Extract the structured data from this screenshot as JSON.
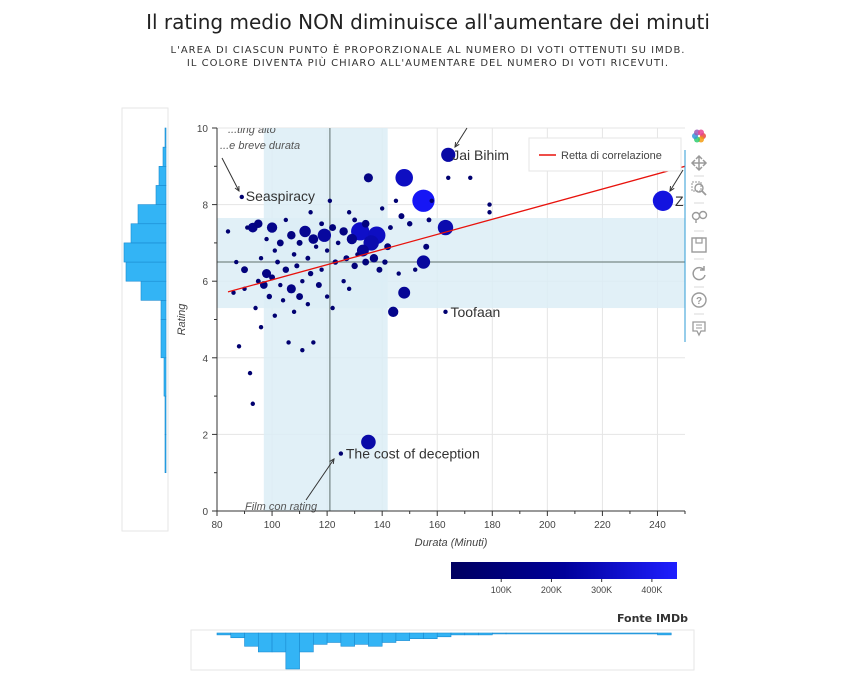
{
  "header": {
    "title": "Il rating medio NON diminuisce all'aumentare dei minuti",
    "subtitle_line1": "L'AREA DI CIASCUN PUNTO È PROPORZIONALE AL NUMERO DI VOTI OTTENUTI SU IMDB.",
    "subtitle_line2": "IL COLORE DIVENTA PIÙ CHIARO ALL'AUMENTARE DEL NUMERO DI VOTI RICEVUTI."
  },
  "source": "Fonte IMDb",
  "toolbar": {
    "icons": [
      "bokeh-logo-icon",
      "pan-icon",
      "box-zoom-icon",
      "wheel-zoom-icon",
      "save-icon",
      "reset-icon",
      "help-icon",
      "hover-icon"
    ]
  },
  "colors": {
    "dark_point": "#000080",
    "light_point": "#1a1aff",
    "band": "#dcedf6",
    "histogram": "#33b4f5",
    "regression": "#e8120c",
    "mean_line": "#8a9a9a"
  },
  "chart_data": {
    "type": "scatter",
    "xlabel": "Durata (Minuti)",
    "ylabel": "Rating",
    "xlim": [
      80,
      250
    ],
    "ylim": [
      0,
      10
    ],
    "xticks": [
      80,
      100,
      120,
      140,
      160,
      180,
      200,
      220,
      240
    ],
    "yticks": [
      0,
      2,
      4,
      6,
      8,
      10
    ],
    "mean_duration": 121,
    "mean_rating": 6.5,
    "duration_band": [
      97,
      142
    ],
    "rating_band": [
      5.3,
      7.65
    ],
    "regression": {
      "name": "Retta di correlazione",
      "x": [
        84,
        250
      ],
      "y": [
        5.72,
        9.0
      ]
    },
    "legend_position": "top-right",
    "colorbar": {
      "ticks": [
        "100K",
        "200K",
        "300K",
        "400K"
      ],
      "range": [
        0,
        450000
      ]
    },
    "annotations": [
      {
        "text": "Seaspiracy",
        "x": 89,
        "y": 8.2
      },
      {
        "text": "Jai Bihim",
        "x": 164,
        "y": 9.3
      },
      {
        "text": "Toofaan",
        "x": 163,
        "y": 5.2
      },
      {
        "text": "The cost of deception",
        "x": 125,
        "y": 1.5
      },
      {
        "text": "Z",
        "x": 242,
        "y": 8.1
      }
    ],
    "annotation_notes": [
      "...ting alto",
      "...e breve durata",
      "Film con rating"
    ],
    "points": [
      {
        "x": 84,
        "y": 7.3,
        "votes": 5000
      },
      {
        "x": 86,
        "y": 5.7,
        "votes": 4000
      },
      {
        "x": 87,
        "y": 6.5,
        "votes": 6000
      },
      {
        "x": 88,
        "y": 4.3,
        "votes": 3000
      },
      {
        "x": 89,
        "y": 8.2,
        "votes": 5000
      },
      {
        "x": 90,
        "y": 6.3,
        "votes": 40000
      },
      {
        "x": 90,
        "y": 5.8,
        "votes": 15000
      },
      {
        "x": 91,
        "y": 7.4,
        "votes": 8000
      },
      {
        "x": 92,
        "y": 3.6,
        "votes": 3000
      },
      {
        "x": 93,
        "y": 7.4,
        "votes": 80000
      },
      {
        "x": 93,
        "y": 2.8,
        "votes": 3000
      },
      {
        "x": 94,
        "y": 5.3,
        "votes": 8000
      },
      {
        "x": 95,
        "y": 7.5,
        "votes": 60000
      },
      {
        "x": 95,
        "y": 6.0,
        "votes": 20000
      },
      {
        "x": 96,
        "y": 4.8,
        "votes": 4000
      },
      {
        "x": 96,
        "y": 6.6,
        "votes": 12000
      },
      {
        "x": 97,
        "y": 5.9,
        "votes": 50000
      },
      {
        "x": 98,
        "y": 6.2,
        "votes": 70000
      },
      {
        "x": 98,
        "y": 7.1,
        "votes": 10000
      },
      {
        "x": 99,
        "y": 5.6,
        "votes": 25000
      },
      {
        "x": 100,
        "y": 6.1,
        "votes": 30000
      },
      {
        "x": 100,
        "y": 7.4,
        "votes": 90000
      },
      {
        "x": 101,
        "y": 5.1,
        "votes": 6000
      },
      {
        "x": 101,
        "y": 6.8,
        "votes": 15000
      },
      {
        "x": 102,
        "y": 6.5,
        "votes": 20000
      },
      {
        "x": 103,
        "y": 5.9,
        "votes": 10000
      },
      {
        "x": 103,
        "y": 7.0,
        "votes": 40000
      },
      {
        "x": 104,
        "y": 5.5,
        "votes": 8000
      },
      {
        "x": 105,
        "y": 6.3,
        "votes": 35000
      },
      {
        "x": 105,
        "y": 7.6,
        "votes": 12000
      },
      {
        "x": 106,
        "y": 4.4,
        "votes": 5000
      },
      {
        "x": 107,
        "y": 5.8,
        "votes": 70000
      },
      {
        "x": 107,
        "y": 7.2,
        "votes": 60000
      },
      {
        "x": 108,
        "y": 6.7,
        "votes": 18000
      },
      {
        "x": 108,
        "y": 5.2,
        "votes": 10000
      },
      {
        "x": 109,
        "y": 6.4,
        "votes": 22000
      },
      {
        "x": 110,
        "y": 7.0,
        "votes": 30000
      },
      {
        "x": 110,
        "y": 5.6,
        "votes": 40000
      },
      {
        "x": 111,
        "y": 4.2,
        "votes": 5000
      },
      {
        "x": 111,
        "y": 6.0,
        "votes": 12000
      },
      {
        "x": 112,
        "y": 7.3,
        "votes": 110000
      },
      {
        "x": 113,
        "y": 6.6,
        "votes": 20000
      },
      {
        "x": 113,
        "y": 5.4,
        "votes": 8000
      },
      {
        "x": 114,
        "y": 7.8,
        "votes": 15000
      },
      {
        "x": 114,
        "y": 6.2,
        "votes": 25000
      },
      {
        "x": 115,
        "y": 4.4,
        "votes": 4000
      },
      {
        "x": 115,
        "y": 7.1,
        "votes": 80000
      },
      {
        "x": 116,
        "y": 6.9,
        "votes": 10000
      },
      {
        "x": 117,
        "y": 5.9,
        "votes": 30000
      },
      {
        "x": 118,
        "y": 7.5,
        "votes": 20000
      },
      {
        "x": 118,
        "y": 6.3,
        "votes": 15000
      },
      {
        "x": 119,
        "y": 7.2,
        "votes": 150000
      },
      {
        "x": 120,
        "y": 5.6,
        "votes": 10000
      },
      {
        "x": 120,
        "y": 6.8,
        "votes": 12000
      },
      {
        "x": 121,
        "y": 8.1,
        "votes": 8000
      },
      {
        "x": 122,
        "y": 7.4,
        "votes": 40000
      },
      {
        "x": 122,
        "y": 5.3,
        "votes": 6000
      },
      {
        "x": 123,
        "y": 6.5,
        "votes": 25000
      },
      {
        "x": 124,
        "y": 7.0,
        "votes": 18000
      },
      {
        "x": 125,
        "y": 1.5,
        "votes": 4000
      },
      {
        "x": 126,
        "y": 7.3,
        "votes": 60000
      },
      {
        "x": 126,
        "y": 6.0,
        "votes": 14000
      },
      {
        "x": 127,
        "y": 6.6,
        "votes": 30000
      },
      {
        "x": 128,
        "y": 7.8,
        "votes": 10000
      },
      {
        "x": 128,
        "y": 5.8,
        "votes": 12000
      },
      {
        "x": 129,
        "y": 7.1,
        "votes": 90000
      },
      {
        "x": 130,
        "y": 6.4,
        "votes": 35000
      },
      {
        "x": 130,
        "y": 7.6,
        "votes": 20000
      },
      {
        "x": 131,
        "y": 6.7,
        "votes": 15000
      },
      {
        "x": 132,
        "y": 7.3,
        "votes": 280000
      },
      {
        "x": 133,
        "y": 6.8,
        "votes": 120000
      },
      {
        "x": 134,
        "y": 7.5,
        "votes": 50000
      },
      {
        "x": 134,
        "y": 6.5,
        "votes": 40000
      },
      {
        "x": 135,
        "y": 1.8,
        "votes": 180000
      },
      {
        "x": 135,
        "y": 8.7,
        "votes": 70000
      },
      {
        "x": 136,
        "y": 7.0,
        "votes": 200000
      },
      {
        "x": 137,
        "y": 6.6,
        "votes": 60000
      },
      {
        "x": 138,
        "y": 7.2,
        "votes": 260000
      },
      {
        "x": 139,
        "y": 6.3,
        "votes": 30000
      },
      {
        "x": 140,
        "y": 7.9,
        "votes": 15000
      },
      {
        "x": 141,
        "y": 6.5,
        "votes": 25000
      },
      {
        "x": 142,
        "y": 6.9,
        "votes": 40000
      },
      {
        "x": 143,
        "y": 7.4,
        "votes": 20000
      },
      {
        "x": 144,
        "y": 5.2,
        "votes": 90000
      },
      {
        "x": 145,
        "y": 8.1,
        "votes": 12000
      },
      {
        "x": 146,
        "y": 6.2,
        "votes": 15000
      },
      {
        "x": 147,
        "y": 7.7,
        "votes": 30000
      },
      {
        "x": 148,
        "y": 8.7,
        "votes": 260000
      },
      {
        "x": 148,
        "y": 5.7,
        "votes": 120000
      },
      {
        "x": 150,
        "y": 7.5,
        "votes": 25000
      },
      {
        "x": 152,
        "y": 6.3,
        "votes": 10000
      },
      {
        "x": 155,
        "y": 8.1,
        "votes": 420000
      },
      {
        "x": 155,
        "y": 6.5,
        "votes": 150000
      },
      {
        "x": 156,
        "y": 6.9,
        "votes": 30000
      },
      {
        "x": 157,
        "y": 7.6,
        "votes": 20000
      },
      {
        "x": 158,
        "y": 8.1,
        "votes": 8000
      },
      {
        "x": 163,
        "y": 5.2,
        "votes": 5000
      },
      {
        "x": 163,
        "y": 7.4,
        "votes": 200000
      },
      {
        "x": 164,
        "y": 9.3,
        "votes": 170000
      },
      {
        "x": 164,
        "y": 8.7,
        "votes": 6000
      },
      {
        "x": 172,
        "y": 8.7,
        "votes": 5000
      },
      {
        "x": 179,
        "y": 7.8,
        "votes": 5000
      },
      {
        "x": 179,
        "y": 8.0,
        "votes": 5000
      },
      {
        "x": 242,
        "y": 8.1,
        "votes": 350000
      }
    ],
    "marginal_rating_hist": [
      {
        "bin": [
          1,
          2
        ],
        "count": 1
      },
      {
        "bin": [
          2,
          3
        ],
        "count": 1
      },
      {
        "bin": [
          3,
          4
        ],
        "count": 2
      },
      {
        "bin": [
          4,
          5
        ],
        "count": 5
      },
      {
        "bin": [
          5,
          5.5
        ],
        "count": 5
      },
      {
        "bin": [
          5.5,
          6
        ],
        "count": 25
      },
      {
        "bin": [
          6,
          6.5
        ],
        "count": 40
      },
      {
        "bin": [
          6.5,
          7
        ],
        "count": 42
      },
      {
        "bin": [
          7,
          7.5
        ],
        "count": 35
      },
      {
        "bin": [
          7.5,
          8
        ],
        "count": 28
      },
      {
        "bin": [
          8,
          8.5
        ],
        "count": 10
      },
      {
        "bin": [
          8.5,
          9
        ],
        "count": 7
      },
      {
        "bin": [
          9,
          9.5
        ],
        "count": 3
      },
      {
        "bin": [
          9.5,
          10
        ],
        "count": 1
      }
    ],
    "marginal_duration_hist": [
      {
        "bin": [
          80,
          85
        ],
        "count": 2
      },
      {
        "bin": [
          85,
          90
        ],
        "count": 5
      },
      {
        "bin": [
          90,
          95
        ],
        "count": 14
      },
      {
        "bin": [
          95,
          100
        ],
        "count": 20
      },
      {
        "bin": [
          100,
          105
        ],
        "count": 20
      },
      {
        "bin": [
          105,
          110
        ],
        "count": 38
      },
      {
        "bin": [
          110,
          115
        ],
        "count": 20
      },
      {
        "bin": [
          115,
          120
        ],
        "count": 12
      },
      {
        "bin": [
          120,
          125
        ],
        "count": 10
      },
      {
        "bin": [
          125,
          130
        ],
        "count": 14
      },
      {
        "bin": [
          130,
          135
        ],
        "count": 12
      },
      {
        "bin": [
          135,
          140
        ],
        "count": 14
      },
      {
        "bin": [
          140,
          145
        ],
        "count": 10
      },
      {
        "bin": [
          145,
          150
        ],
        "count": 8
      },
      {
        "bin": [
          150,
          155
        ],
        "count": 6
      },
      {
        "bin": [
          155,
          160
        ],
        "count": 6
      },
      {
        "bin": [
          160,
          165
        ],
        "count": 4
      },
      {
        "bin": [
          165,
          170
        ],
        "count": 2
      },
      {
        "bin": [
          170,
          175
        ],
        "count": 2
      },
      {
        "bin": [
          175,
          180
        ],
        "count": 2
      },
      {
        "bin": [
          180,
          185
        ],
        "count": 1
      },
      {
        "bin": [
          185,
          240
        ],
        "count": 1
      },
      {
        "bin": [
          240,
          245
        ],
        "count": 2
      }
    ]
  }
}
